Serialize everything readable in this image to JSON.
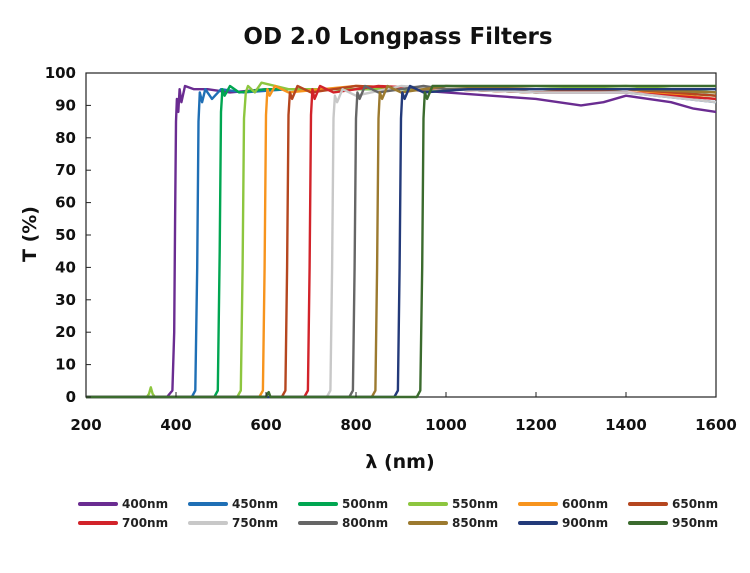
{
  "chart_data": {
    "type": "line",
    "title": "OD 2.0 Longpass Filters",
    "xlabel": "λ (nm)",
    "ylabel": "T (%)",
    "xlim": [
      200,
      1600
    ],
    "ylim": [
      0,
      100
    ],
    "xticks": [
      200,
      400,
      600,
      800,
      1000,
      1200,
      1400,
      1600
    ],
    "yticks": [
      0,
      10,
      20,
      30,
      40,
      50,
      60,
      70,
      80,
      90,
      100
    ],
    "grid": false,
    "legend_position": "bottom",
    "series": [
      {
        "name": "400nm",
        "color": "#6a2c91",
        "cutoff": 400,
        "x": [
          200,
          340,
          380,
          392,
          396,
          398,
          400,
          402,
          405,
          408,
          412,
          420,
          440,
          470,
          520,
          600,
          700,
          800,
          900,
          1000,
          1100,
          1200,
          1250,
          1300,
          1350,
          1400,
          1450,
          1500,
          1550,
          1600
        ],
        "y": [
          0,
          0,
          0,
          2,
          20,
          55,
          85,
          92,
          88,
          95,
          91,
          96,
          95,
          95,
          94,
          95,
          95,
          95,
          95,
          94,
          93,
          92,
          91,
          90,
          91,
          93,
          92,
          91,
          89,
          88
        ]
      },
      {
        "name": "450nm",
        "color": "#1f6fb5",
        "cutoff": 450,
        "x": [
          200,
          435,
          443,
          447,
          450,
          453,
          458,
          465,
          480,
          500,
          550,
          650,
          800,
          1000,
          1200,
          1400,
          1600
        ],
        "y": [
          0,
          0,
          2,
          40,
          85,
          94,
          91,
          95,
          92,
          95,
          94,
          95,
          95,
          95,
          94,
          94,
          91
        ]
      },
      {
        "name": "500nm",
        "color": "#00a651",
        "cutoff": 500,
        "x": [
          200,
          485,
          493,
          497,
          500,
          503,
          508,
          520,
          540,
          600,
          800,
          1000,
          1200,
          1400,
          1600
        ],
        "y": [
          0,
          0,
          2,
          45,
          88,
          95,
          93,
          96,
          94,
          95,
          95,
          95,
          94,
          95,
          93
        ]
      },
      {
        "name": "550nm",
        "color": "#8dc63f",
        "cutoff": 550,
        "x": [
          200,
          335,
          340,
          344,
          348,
          353,
          536,
          544,
          548,
          551,
          555,
          560,
          575,
          590,
          650,
          800,
          1000,
          1200,
          1400,
          1600
        ],
        "y": [
          0,
          0,
          1,
          3,
          1,
          0,
          0,
          2,
          40,
          86,
          94,
          96,
          94,
          97,
          95,
          95,
          95,
          95,
          96,
          94
        ]
      },
      {
        "name": "600nm",
        "color": "#f7941d",
        "cutoff": 600,
        "x": [
          200,
          585,
          593,
          597,
          600,
          603,
          608,
          620,
          650,
          800,
          1000,
          1200,
          1400,
          1600
        ],
        "y": [
          0,
          0,
          2,
          40,
          87,
          95,
          93,
          96,
          94,
          96,
          95,
          94,
          95,
          92
        ]
      },
      {
        "name": "650nm",
        "color": "#b5461f",
        "cutoff": 650,
        "x": [
          200,
          635,
          643,
          647,
          650,
          653,
          658,
          670,
          700,
          800,
          1000,
          1200,
          1400,
          1600
        ],
        "y": [
          0,
          0,
          2,
          40,
          87,
          94,
          92,
          96,
          94,
          96,
          95,
          94,
          95,
          93
        ]
      },
      {
        "name": "700nm",
        "color": "#d2232a",
        "cutoff": 700,
        "x": [
          200,
          685,
          693,
          697,
          700,
          703,
          708,
          720,
          750,
          850,
          1000,
          1200,
          1400,
          1600
        ],
        "y": [
          0,
          0,
          2,
          40,
          87,
          95,
          92,
          96,
          94,
          96,
          95,
          94,
          94,
          92
        ]
      },
      {
        "name": "750nm",
        "color": "#c8c8c8",
        "cutoff": 750,
        "x": [
          200,
          735,
          743,
          747,
          750,
          753,
          758,
          770,
          800,
          900,
          1000,
          1200,
          1400,
          1600
        ],
        "y": [
          0,
          0,
          2,
          40,
          86,
          93,
          91,
          95,
          93,
          96,
          95,
          94,
          94,
          91
        ]
      },
      {
        "name": "800nm",
        "color": "#666666",
        "cutoff": 800,
        "x": [
          200,
          785,
          793,
          797,
          800,
          803,
          808,
          820,
          850,
          950,
          1000,
          1200,
          1400,
          1600
        ],
        "y": [
          0,
          0,
          2,
          40,
          86,
          94,
          92,
          96,
          94,
          96,
          95,
          95,
          95,
          94
        ]
      },
      {
        "name": "850nm",
        "color": "#9c7a2f",
        "cutoff": 850,
        "x": [
          200,
          835,
          843,
          847,
          850,
          853,
          858,
          870,
          900,
          1000,
          1200,
          1400,
          1600
        ],
        "y": [
          0,
          0,
          2,
          40,
          86,
          94,
          92,
          96,
          94,
          96,
          95,
          95,
          94
        ]
      },
      {
        "name": "900nm",
        "color": "#233a7a",
        "cutoff": 900,
        "x": [
          200,
          885,
          893,
          897,
          900,
          903,
          908,
          920,
          950,
          1050,
          1200,
          1400,
          1600
        ],
        "y": [
          0,
          0,
          2,
          40,
          86,
          94,
          92,
          96,
          94,
          95,
          95,
          95,
          95
        ]
      },
      {
        "name": "950nm",
        "color": "#3b6b2e",
        "cutoff": 950,
        "x": [
          200,
          600,
          603,
          606,
          610,
          935,
          943,
          947,
          950,
          953,
          958,
          970,
          1000,
          1100,
          1200,
          1400,
          1600
        ],
        "y": [
          0,
          0,
          1,
          1.5,
          0,
          0,
          2,
          40,
          86,
          94,
          92,
          96,
          96,
          96,
          96,
          96,
          96
        ]
      }
    ]
  }
}
